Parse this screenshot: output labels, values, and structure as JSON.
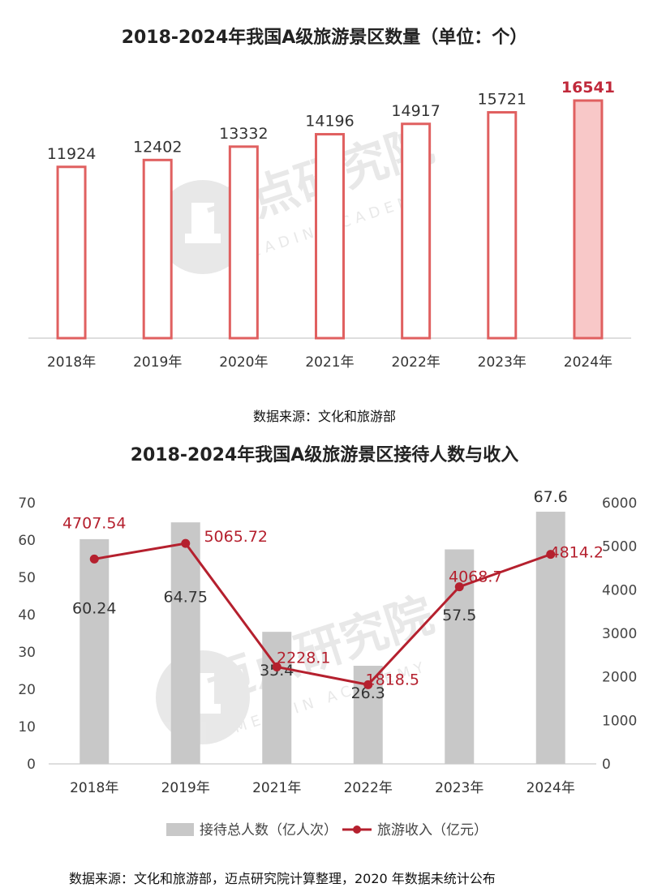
{
  "chart_data": [
    {
      "type": "bar",
      "title": "2018-2024年我国A级旅游景区数量（单位：个）",
      "categories": [
        "2018年",
        "2019年",
        "2020年",
        "2021年",
        "2022年",
        "2023年",
        "2024年"
      ],
      "values": [
        11924,
        12402,
        13332,
        14196,
        14917,
        15721,
        16541
      ],
      "ylim": [
        0,
        17500
      ],
      "grid": false,
      "highlight_index": 6,
      "source": "数据来源：文化和旅游部",
      "colors": {
        "bar_stroke": "#e06060",
        "bar_fill": "#ffffff",
        "highlight_fill": "#f8c8c8",
        "highlight_label": "#c0283a"
      }
    },
    {
      "type": "bar+line",
      "title": "2018-2024年我国A级旅游景区接待人数与收入",
      "categories": [
        "2018年",
        "2019年",
        "2021年",
        "2022年",
        "2023年",
        "2024年"
      ],
      "series": [
        {
          "name": "接待总人数（亿人次）",
          "type": "bar",
          "axis": "left",
          "values": [
            60.24,
            64.75,
            35.4,
            26.3,
            57.5,
            67.6
          ],
          "labels": [
            "60.24",
            "64.75",
            "35.4",
            "26.3",
            "57.5",
            "67.6"
          ]
        },
        {
          "name": "旅游收入（亿元）",
          "type": "line",
          "axis": "right",
          "values": [
            4707.54,
            5065.72,
            2228.1,
            1818.5,
            4068.7,
            4814.2
          ],
          "labels": [
            "4707.54",
            "5065.72",
            "2228.1",
            "1818.5",
            "4068.7",
            "4814.2"
          ]
        }
      ],
      "y_left": {
        "ylim": [
          0,
          70
        ],
        "ticks": [
          "0",
          "10",
          "20",
          "30",
          "40",
          "50",
          "60",
          "70"
        ]
      },
      "y_right": {
        "ylim": [
          0,
          6000
        ],
        "ticks": [
          "0",
          "1000",
          "2000",
          "3000",
          "4000",
          "5000",
          "6000"
        ]
      },
      "legend_position": "bottom",
      "source": "数据来源：文化和旅游部，迈点研究院计算整理，2020 年数据未统计公布",
      "colors": {
        "bar": "#c8c8c8",
        "line": "#b5202e",
        "line_label": "#b5202e"
      }
    }
  ],
  "watermark": {
    "text": "迈点研究院",
    "subtext": "MEADIN ACADEMY"
  }
}
